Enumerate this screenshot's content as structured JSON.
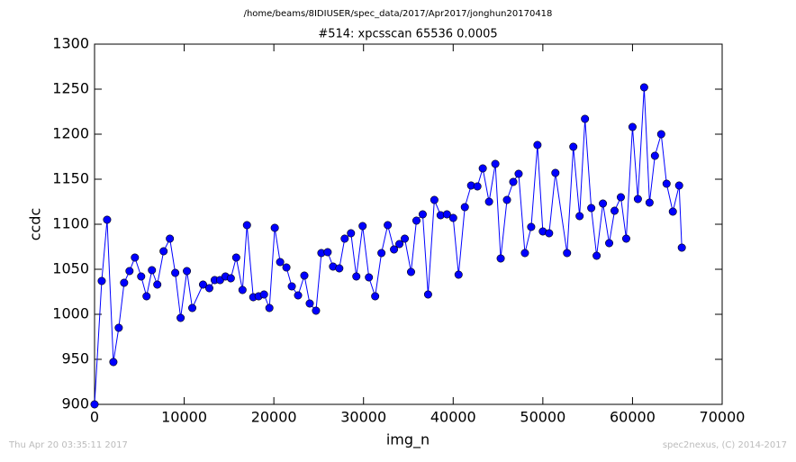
{
  "chart_data": {
    "type": "line",
    "suptitle": "/home/beams/8IDIUSER/spec_data/2017/Apr2017/jonghun20170418",
    "title": "#514: xpcsscan 65536 0.0005",
    "xlabel": "img_n",
    "ylabel": "ccdc",
    "footer_left": "Thu Apr 20 03:35:11 2017",
    "footer_right": "spec2nexus, (C) 2014-2017",
    "xlim": [
      0,
      70000
    ],
    "xticks": [
      0,
      10000,
      20000,
      30000,
      40000,
      50000,
      60000,
      70000
    ],
    "ylim": [
      900,
      1300
    ],
    "yticks": [
      900,
      950,
      1000,
      1050,
      1100,
      1150,
      1200,
      1250,
      1300
    ],
    "series": [
      {
        "color": "#0000ff",
        "x": [
          0,
          800,
          1400,
          2100,
          2700,
          3300,
          3900,
          4500,
          5200,
          5800,
          6400,
          7000,
          7700,
          8400,
          9000,
          9600,
          10300,
          10900,
          12100,
          12800,
          13400,
          14000,
          14600,
          15200,
          15800,
          16500,
          17000,
          17700,
          18300,
          18900,
          19500,
          20100,
          20700,
          21400,
          22000,
          22700,
          23400,
          24000,
          24700,
          25300,
          26000,
          26600,
          27300,
          27900,
          28600,
          29200,
          29900,
          30600,
          31300,
          32000,
          32700,
          33400,
          34000,
          34600,
          35300,
          35900,
          36600,
          37200,
          37900,
          38600,
          39300,
          40000,
          40600,
          41300,
          42000,
          42700,
          43300,
          44000,
          44700,
          45300,
          46000,
          46700,
          47300,
          48000,
          48700,
          49400,
          50000,
          50700,
          51400,
          52700,
          53400,
          54100,
          54700,
          55400,
          56000,
          56700,
          57400,
          58000,
          58700,
          59300,
          60000,
          60600,
          61300,
          61900,
          62500,
          63200,
          63800,
          64500,
          65200,
          65500
        ],
        "values": [
          900,
          1037,
          1105,
          947,
          985,
          1035,
          1048,
          1063,
          1042,
          1020,
          1049,
          1033,
          1070,
          1084,
          1046,
          996,
          1048,
          1007,
          1033,
          1029,
          1038,
          1038,
          1042,
          1040,
          1063,
          1027,
          1099,
          1019,
          1020,
          1022,
          1007,
          1096,
          1058,
          1052,
          1031,
          1021,
          1043,
          1012,
          1004,
          1068,
          1069,
          1053,
          1051,
          1084,
          1090,
          1042,
          1098,
          1041,
          1020,
          1068,
          1099,
          1072,
          1078,
          1084,
          1047,
          1104,
          1111,
          1022,
          1127,
          1110,
          1111,
          1107,
          1044,
          1119,
          1143,
          1142,
          1162,
          1125,
          1167,
          1062,
          1127,
          1147,
          1156,
          1068,
          1097,
          1188,
          1092,
          1090,
          1157,
          1068,
          1186,
          1109,
          1217,
          1118,
          1065,
          1123,
          1079,
          1115,
          1130,
          1084,
          1208,
          1128,
          1252,
          1124,
          1176,
          1200,
          1145,
          1114,
          1143,
          1074
        ]
      }
    ]
  }
}
